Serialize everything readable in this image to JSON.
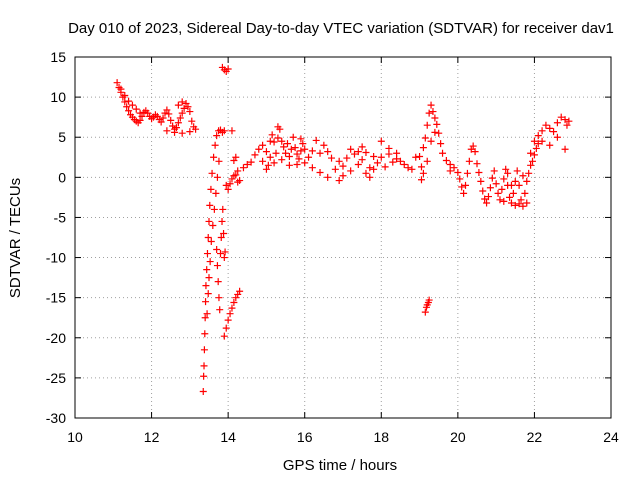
{
  "chart_data": {
    "type": "scatter",
    "title": "Day 010 of 2023, Sidereal Day-to-day VTEC variation (SDTVAR) for receiver dav1",
    "xlabel": "GPS time / hours",
    "ylabel": "SDTVAR / TECUs",
    "xlim": [
      10,
      24
    ],
    "ylim": [
      -30,
      15
    ],
    "xticks": [
      "10",
      "12",
      "14",
      "16",
      "18",
      "20",
      "22",
      "24"
    ],
    "yticks": [
      "15",
      "10",
      "5",
      "0",
      "-5",
      "-10",
      "-15",
      "-20",
      "-25",
      "-30"
    ],
    "grid": true,
    "marker": "+",
    "series": [
      {
        "name": "dav1",
        "color": "#ff0000",
        "points": [
          [
            11.1,
            11.8
          ],
          [
            11.15,
            11.2
          ],
          [
            11.2,
            10.6
          ],
          [
            11.25,
            10.0
          ],
          [
            11.3,
            9.4
          ],
          [
            11.35,
            8.8
          ],
          [
            11.4,
            8.3
          ],
          [
            11.45,
            7.8
          ],
          [
            11.5,
            7.5
          ],
          [
            11.55,
            7.2
          ],
          [
            11.6,
            7.0
          ],
          [
            11.65,
            6.8
          ],
          [
            11.7,
            7.1
          ],
          [
            11.75,
            7.6
          ],
          [
            11.8,
            8.1
          ],
          [
            11.85,
            8.3
          ],
          [
            11.9,
            8.0
          ],
          [
            11.95,
            7.6
          ],
          [
            12.0,
            7.3
          ],
          [
            12.05,
            7.5
          ],
          [
            12.1,
            7.8
          ],
          [
            12.15,
            7.6
          ],
          [
            12.2,
            7.2
          ],
          [
            12.25,
            6.9
          ],
          [
            12.3,
            7.4
          ],
          [
            12.35,
            8.0
          ],
          [
            12.4,
            8.4
          ],
          [
            12.45,
            7.9
          ],
          [
            12.5,
            7.1
          ],
          [
            12.55,
            6.4
          ],
          [
            12.6,
            6.0
          ],
          [
            12.65,
            6.2
          ],
          [
            12.7,
            6.8
          ],
          [
            12.75,
            7.4
          ],
          [
            12.8,
            8.0
          ],
          [
            12.85,
            8.6
          ],
          [
            12.9,
            9.2
          ],
          [
            12.95,
            8.8
          ],
          [
            13.0,
            8.2
          ],
          [
            13.05,
            7.0
          ],
          [
            13.1,
            6.3
          ],
          [
            13.15,
            6.0
          ],
          [
            11.2,
            11.0
          ],
          [
            11.3,
            10.2
          ],
          [
            11.4,
            9.5
          ],
          [
            11.5,
            9.0
          ],
          [
            11.6,
            8.5
          ],
          [
            11.7,
            8.0
          ],
          [
            12.4,
            5.8
          ],
          [
            12.6,
            5.6
          ],
          [
            12.8,
            5.5
          ],
          [
            13.0,
            5.7
          ],
          [
            12.7,
            9.0
          ],
          [
            12.8,
            9.4
          ],
          [
            13.35,
            -26.7
          ],
          [
            13.36,
            -24.8
          ],
          [
            13.37,
            -23.5
          ],
          [
            13.38,
            -21.5
          ],
          [
            13.39,
            -19.5
          ],
          [
            13.4,
            -17.5
          ],
          [
            13.41,
            -15.5
          ],
          [
            13.42,
            -13.5
          ],
          [
            13.44,
            -11.5
          ],
          [
            13.46,
            -9.5
          ],
          [
            13.48,
            -7.5
          ],
          [
            13.5,
            -5.5
          ],
          [
            13.52,
            -3.5
          ],
          [
            13.55,
            -1.5
          ],
          [
            13.58,
            0.5
          ],
          [
            13.62,
            2.5
          ],
          [
            13.66,
            4.0
          ],
          [
            13.7,
            5.2
          ],
          [
            13.75,
            5.8
          ],
          [
            13.8,
            5.9
          ],
          [
            13.85,
            5.6
          ],
          [
            13.9,
            5.8
          ],
          [
            13.45,
            -17.0
          ],
          [
            13.48,
            -14.5
          ],
          [
            13.5,
            -12.5
          ],
          [
            13.53,
            -10.5
          ],
          [
            13.56,
            -8.0
          ],
          [
            13.6,
            -6.0
          ],
          [
            13.64,
            -4.0
          ],
          [
            13.68,
            -2.0
          ],
          [
            13.72,
            0.0
          ],
          [
            13.76,
            2.0
          ],
          [
            13.7,
            -9.0
          ],
          [
            13.72,
            -11.0
          ],
          [
            13.74,
            -13.0
          ],
          [
            13.76,
            -15.0
          ],
          [
            13.78,
            -16.5
          ],
          [
            13.8,
            -9.5
          ],
          [
            13.82,
            -7.5
          ],
          [
            13.84,
            -5.5
          ],
          [
            13.86,
            -4.0
          ],
          [
            13.88,
            -7.0
          ],
          [
            13.9,
            -10.0
          ],
          [
            13.92,
            -9.3
          ],
          [
            13.9,
            -19.8
          ],
          [
            13.95,
            -18.8
          ],
          [
            14.0,
            -17.8
          ],
          [
            14.05,
            -17.0
          ],
          [
            14.1,
            -16.3
          ],
          [
            14.15,
            -15.6
          ],
          [
            14.2,
            -15.0
          ],
          [
            14.25,
            -14.6
          ],
          [
            14.3,
            -14.2
          ],
          [
            13.85,
            13.7
          ],
          [
            13.9,
            13.4
          ],
          [
            13.95,
            13.2
          ],
          [
            14.0,
            13.5
          ],
          [
            13.95,
            -1.0
          ],
          [
            14.0,
            -1.5
          ],
          [
            14.05,
            -0.8
          ],
          [
            14.1,
            -0.2
          ],
          [
            14.15,
            0.2
          ],
          [
            14.2,
            0.3
          ],
          [
            14.25,
            -0.6
          ],
          [
            14.3,
            -0.4
          ],
          [
            14.1,
            5.8
          ],
          [
            14.2,
            2.5
          ],
          [
            14.15,
            2.1
          ],
          [
            14.25,
            0.8
          ],
          [
            14.4,
            1.2
          ],
          [
            14.5,
            1.6
          ],
          [
            14.6,
            1.9
          ],
          [
            14.7,
            2.8
          ],
          [
            14.8,
            3.5
          ],
          [
            14.9,
            4.0
          ],
          [
            15.0,
            3.2
          ],
          [
            15.05,
            1.5
          ],
          [
            15.1,
            2.5
          ],
          [
            15.15,
            5.3
          ],
          [
            15.2,
            4.4
          ],
          [
            15.25,
            3.0
          ],
          [
            15.3,
            4.9
          ],
          [
            15.35,
            6.0
          ],
          [
            15.4,
            4.5
          ],
          [
            15.45,
            3.8
          ],
          [
            15.5,
            3.0
          ],
          [
            15.55,
            4.2
          ],
          [
            15.6,
            2.6
          ],
          [
            15.65,
            3.5
          ],
          [
            15.7,
            5.0
          ],
          [
            15.75,
            3.7
          ],
          [
            15.8,
            2.9
          ],
          [
            15.85,
            2.3
          ],
          [
            15.9,
            3.3
          ],
          [
            15.95,
            4.2
          ],
          [
            16.0,
            3.5
          ],
          [
            16.1,
            2.5
          ],
          [
            16.2,
            3.3
          ],
          [
            16.3,
            4.6
          ],
          [
            16.4,
            3.0
          ],
          [
            16.5,
            4.0
          ],
          [
            16.6,
            3.2
          ],
          [
            16.7,
            2.4
          ],
          [
            14.9,
            2.0
          ],
          [
            15.0,
            1.0
          ],
          [
            15.2,
            1.8
          ],
          [
            15.4,
            2.2
          ],
          [
            15.6,
            1.5
          ],
          [
            15.8,
            1.6
          ],
          [
            16.0,
            1.8
          ],
          [
            16.2,
            1.2
          ],
          [
            16.4,
            0.6
          ],
          [
            16.6,
            0.0
          ],
          [
            15.3,
            6.3
          ],
          [
            15.1,
            4.5
          ],
          [
            15.9,
            4.8
          ],
          [
            16.8,
            1.0
          ],
          [
            16.9,
            2.0
          ],
          [
            17.0,
            1.4
          ],
          [
            17.1,
            2.4
          ],
          [
            17.2,
            0.8
          ],
          [
            17.3,
            2.9
          ],
          [
            17.4,
            1.6
          ],
          [
            17.5,
            2.2
          ],
          [
            17.6,
            3.1
          ],
          [
            17.7,
            1.2
          ],
          [
            17.8,
            2.6
          ],
          [
            17.9,
            1.8
          ],
          [
            18.0,
            2.5
          ],
          [
            18.1,
            1.3
          ],
          [
            18.2,
            2.9
          ],
          [
            18.3,
            1.9
          ],
          [
            18.4,
            2.3
          ],
          [
            18.5,
            2.0
          ],
          [
            18.6,
            1.6
          ],
          [
            16.9,
            -0.4
          ],
          [
            17.0,
            0.2
          ],
          [
            17.2,
            3.5
          ],
          [
            17.4,
            3.2
          ],
          [
            17.6,
            0.5
          ],
          [
            17.8,
            1.0
          ],
          [
            18.0,
            4.5
          ],
          [
            18.2,
            3.6
          ],
          [
            18.4,
            3.0
          ],
          [
            17.5,
            3.8
          ],
          [
            17.7,
            0.0
          ],
          [
            18.7,
            1.2
          ],
          [
            18.8,
            1.0
          ],
          [
            18.9,
            2.5
          ],
          [
            19.0,
            2.6
          ],
          [
            19.05,
            1.3
          ],
          [
            19.1,
            3.7
          ],
          [
            19.15,
            4.9
          ],
          [
            19.2,
            6.5
          ],
          [
            19.25,
            8.0
          ],
          [
            19.3,
            9.0
          ],
          [
            19.35,
            8.2
          ],
          [
            19.4,
            7.4
          ],
          [
            19.45,
            6.6
          ],
          [
            19.5,
            5.5
          ],
          [
            19.55,
            4.2
          ],
          [
            19.6,
            3.0
          ],
          [
            19.7,
            2.1
          ],
          [
            19.8,
            1.6
          ],
          [
            19.05,
            -0.3
          ],
          [
            19.1,
            0.5
          ],
          [
            19.2,
            2.0
          ],
          [
            19.3,
            4.5
          ],
          [
            19.4,
            5.6
          ],
          [
            19.15,
            -16.8
          ],
          [
            19.18,
            -16.2
          ],
          [
            19.2,
            -15.9
          ],
          [
            19.23,
            -15.6
          ],
          [
            19.25,
            -15.3
          ],
          [
            19.8,
            0.8
          ],
          [
            19.9,
            1.2
          ],
          [
            20.0,
            0.6
          ],
          [
            20.05,
            -0.2
          ],
          [
            20.1,
            -1.2
          ],
          [
            20.15,
            -2.0
          ],
          [
            20.2,
            -1.0
          ],
          [
            20.25,
            0.5
          ],
          [
            20.3,
            2.0
          ],
          [
            20.35,
            3.5
          ],
          [
            20.4,
            3.9
          ],
          [
            20.45,
            3.2
          ],
          [
            20.5,
            1.7
          ],
          [
            20.55,
            0.6
          ],
          [
            20.6,
            -0.5
          ],
          [
            20.65,
            -1.7
          ],
          [
            20.7,
            -2.7
          ],
          [
            20.75,
            -3.2
          ],
          [
            20.8,
            -2.4
          ],
          [
            20.85,
            -1.3
          ],
          [
            20.9,
            -0.1
          ],
          [
            20.95,
            0.8
          ],
          [
            21.0,
            -0.8
          ],
          [
            21.05,
            -2.0
          ],
          [
            21.1,
            -2.8
          ],
          [
            21.15,
            -1.5
          ],
          [
            21.2,
            -0.2
          ],
          [
            21.25,
            1.0
          ],
          [
            21.3,
            -1.0
          ],
          [
            21.35,
            -2.5
          ],
          [
            21.4,
            -3.2
          ],
          [
            21.45,
            -2.0
          ],
          [
            21.5,
            -0.5
          ],
          [
            21.55,
            0.8
          ],
          [
            21.6,
            -1.0
          ],
          [
            21.65,
            -2.8
          ],
          [
            21.7,
            -3.6
          ],
          [
            21.75,
            -2.0
          ],
          [
            21.8,
            -0.5
          ],
          [
            21.85,
            0.5
          ],
          [
            21.9,
            1.5
          ],
          [
            21.95,
            2.0
          ],
          [
            22.0,
            2.8
          ],
          [
            22.05,
            3.6
          ],
          [
            22.1,
            4.2
          ],
          [
            21.2,
            -3.0
          ],
          [
            21.4,
            -1.0
          ],
          [
            21.6,
            -3.3
          ],
          [
            21.8,
            -3.2
          ],
          [
            21.7,
            0.2
          ],
          [
            21.5,
            -3.5
          ],
          [
            21.3,
            0.5
          ],
          [
            21.9,
            3.0
          ],
          [
            22.0,
            4.5
          ],
          [
            22.1,
            5.2
          ],
          [
            22.2,
            5.8
          ],
          [
            22.3,
            6.5
          ],
          [
            22.4,
            6.1
          ],
          [
            22.5,
            5.7
          ],
          [
            22.6,
            6.8
          ],
          [
            22.7,
            7.5
          ],
          [
            22.8,
            7.2
          ],
          [
            22.85,
            6.5
          ],
          [
            22.9,
            7.0
          ],
          [
            22.2,
            4.5
          ],
          [
            22.4,
            4.0
          ],
          [
            22.6,
            5.0
          ],
          [
            22.8,
            3.5
          ]
        ]
      }
    ]
  }
}
